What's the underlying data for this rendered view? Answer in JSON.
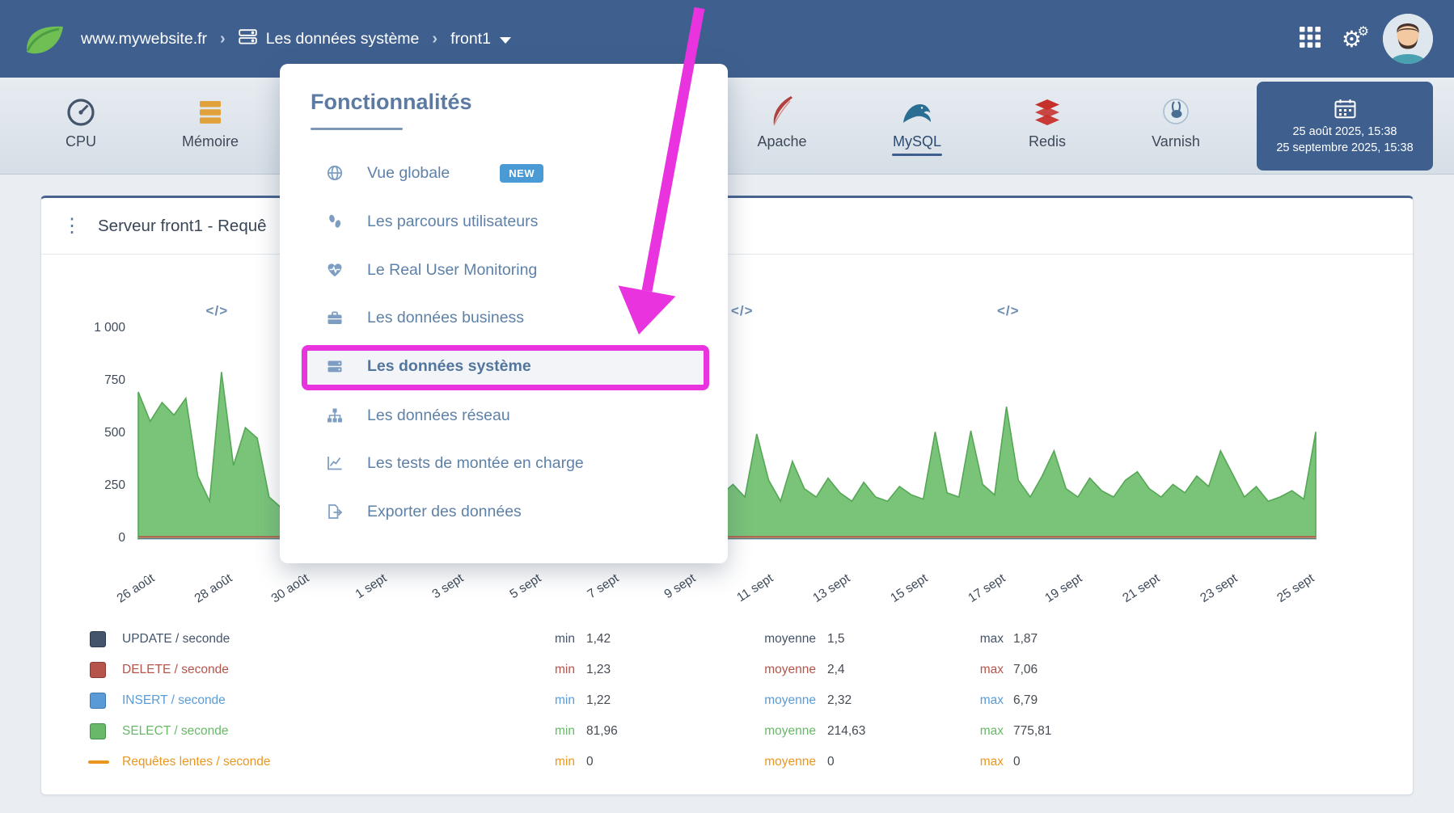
{
  "header": {
    "site": "www.mywebsite.fr",
    "breadcrumb_section": "Les données système",
    "server": "front1"
  },
  "toolbar": {
    "tabs": [
      {
        "label": "CPU"
      },
      {
        "label": "Mémoire"
      },
      {
        "label": "Apache"
      },
      {
        "label": "MySQL",
        "active": true
      },
      {
        "label": "Redis"
      },
      {
        "label": "Varnish"
      }
    ],
    "date_range": {
      "start": "25 août 2025, 15:38",
      "end": "25 septembre 2025, 15:38"
    }
  },
  "menu": {
    "title": "Fonctionnalités",
    "items": [
      {
        "label": "Vue globale",
        "badge": "NEW",
        "icon": "globe"
      },
      {
        "label": "Les parcours utilisateurs",
        "icon": "footprints"
      },
      {
        "label": "Le Real User Monitoring",
        "icon": "heartbeat"
      },
      {
        "label": "Les données business",
        "icon": "briefcase"
      },
      {
        "label": "Les données système",
        "icon": "server",
        "highlighted": true
      },
      {
        "label": "Les données réseau",
        "icon": "sitemap"
      },
      {
        "label": "Les tests de montée en charge",
        "icon": "chart-line"
      },
      {
        "label": "Exporter des données",
        "icon": "file-export"
      }
    ]
  },
  "card": {
    "title": "Serveur front1 - Requê"
  },
  "chart_data": {
    "type": "area",
    "title": "Serveur front1 - Requê",
    "ylim": [
      0,
      1000
    ],
    "grid": false,
    "y_ticks": [
      {
        "value": 0,
        "label": "0"
      },
      {
        "value": 250,
        "label": "250"
      },
      {
        "value": 500,
        "label": "500"
      },
      {
        "value": 750,
        "label": "750"
      },
      {
        "value": 1000,
        "label": "1 000"
      }
    ],
    "x_ticks": [
      "26 août",
      "28 août",
      "30 août",
      "1 sept",
      "3 sept",
      "5 sept",
      "7 sept",
      "9 sept",
      "11 sept",
      "13 sept",
      "15 sept",
      "17 sept",
      "19 sept",
      "21 sept",
      "23 sept",
      "25 sept"
    ],
    "annotations": {
      "symbol": "</>",
      "positions": [
        0.067,
        0.513,
        0.739
      ]
    },
    "series": [
      {
        "name": "SELECT / seconde",
        "type": "area",
        "color": "#7ac47a",
        "stroke": "#55a755",
        "values": [
          700,
          560,
          650,
          590,
          670,
          300,
          180,
          795,
          350,
          530,
          480,
          200,
          150,
          160,
          180,
          170,
          210,
          180,
          160,
          240,
          190,
          170,
          220,
          180,
          160,
          200,
          230,
          180,
          170,
          210,
          190,
          160,
          230,
          200,
          180,
          170,
          220,
          190,
          170,
          240,
          200,
          180,
          160,
          210,
          190,
          170,
          230,
          200,
          180,
          210,
          260,
          200,
          500,
          280,
          180,
          370,
          240,
          200,
          290,
          220,
          180,
          270,
          200,
          180,
          250,
          210,
          190,
          510,
          220,
          200,
          515,
          260,
          210,
          630,
          280,
          200,
          300,
          420,
          240,
          200,
          290,
          230,
          200,
          280,
          320,
          240,
          200,
          260,
          220,
          300,
          250,
          420,
          310,
          200,
          250,
          180,
          200,
          230,
          190,
          510
        ]
      },
      {
        "name": "UPDATE / seconde",
        "type": "line",
        "color": "#44546a",
        "flat_near_zero": true
      },
      {
        "name": "INSERT / seconde",
        "type": "line",
        "color": "#5b9bd5",
        "flat_near_zero": true
      },
      {
        "name": "Requêtes lentes / seconde",
        "type": "line",
        "color": "#e9a13b",
        "flat_near_zero": true
      },
      {
        "name": "DELETE / seconde",
        "type": "line",
        "color": "#b5544b",
        "flat_near_zero": true
      }
    ]
  },
  "legend": {
    "labels": {
      "min": "min",
      "avg": "moyenne",
      "max": "max"
    },
    "rows": [
      {
        "name": "UPDATE / seconde",
        "color": "#44546a",
        "border": "#2c3a4d",
        "min": "1,42",
        "avg": "1,5",
        "max": "1,87"
      },
      {
        "name": "DELETE / seconde",
        "color": "#b5544b",
        "border": "#8a3c33",
        "min": "1,23",
        "avg": "2,4",
        "max": "7,06"
      },
      {
        "name": "INSERT / seconde",
        "color": "#5b9bd5",
        "border": "#3c77ad",
        "min": "1,22",
        "avg": "2,32",
        "max": "6,79"
      },
      {
        "name": "SELECT / seconde",
        "color": "#69b869",
        "border": "#468f46",
        "min": "81,96",
        "avg": "214,63",
        "max": "775,81"
      },
      {
        "name": "Requêtes lentes / seconde",
        "color": "#e9971e",
        "border": "#e9971e",
        "min": "0",
        "avg": "0",
        "max": "0"
      }
    ]
  },
  "colors": {
    "header_bg": "#3f608f",
    "accent_magenta": "#e833df",
    "badge_blue": "#4a9bd5"
  }
}
